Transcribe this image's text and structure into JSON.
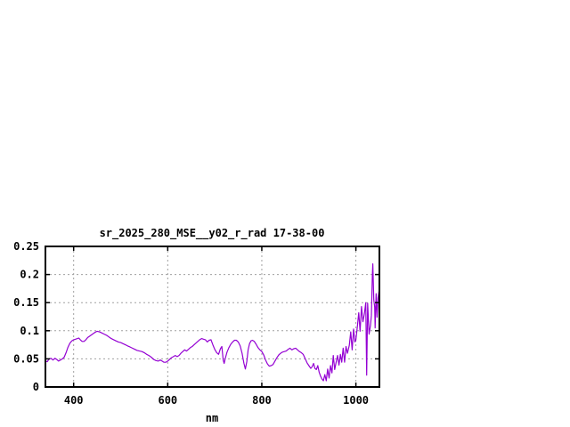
{
  "window": {
    "background_color": "#ffffff",
    "text_color": "#000000"
  },
  "chart_data": {
    "type": "line",
    "title": "sr_2025_280_MSE__y02_r_rad 17-38-00",
    "xlabel": "nm",
    "ylabel": "",
    "xlim": [
      340,
      1050
    ],
    "ylim": [
      0,
      0.25
    ],
    "xticks": [
      400,
      600,
      800,
      1000
    ],
    "xtick_labels": [
      "400",
      "600",
      "800",
      "1000"
    ],
    "yticks": [
      0,
      0.05,
      0.1,
      0.15,
      0.2,
      0.25
    ],
    "ytick_labels": [
      "0",
      "0.05",
      "0.1",
      "0.15",
      "0.2",
      "0.25"
    ],
    "grid": true,
    "grid_style": "dashed",
    "grid_color": "#a0a0a0",
    "border_color": "#000000",
    "legend_position": "none",
    "series": [
      {
        "name": "sr_2025_280_MSE__y02_r_rad",
        "color": "#9400d3",
        "points": [
          [
            340,
            0.046
          ],
          [
            344,
            0.045
          ],
          [
            348,
            0.05
          ],
          [
            352,
            0.051
          ],
          [
            356,
            0.048
          ],
          [
            360,
            0.051
          ],
          [
            364,
            0.049
          ],
          [
            368,
            0.046
          ],
          [
            372,
            0.048
          ],
          [
            376,
            0.05
          ],
          [
            380,
            0.053
          ],
          [
            384,
            0.061
          ],
          [
            388,
            0.071
          ],
          [
            392,
            0.078
          ],
          [
            396,
            0.082
          ],
          [
            400,
            0.084
          ],
          [
            404,
            0.085
          ],
          [
            408,
            0.086
          ],
          [
            411,
            0.087
          ],
          [
            414,
            0.084
          ],
          [
            418,
            0.081
          ],
          [
            422,
            0.081
          ],
          [
            426,
            0.084
          ],
          [
            430,
            0.088
          ],
          [
            435,
            0.091
          ],
          [
            440,
            0.094
          ],
          [
            445,
            0.097
          ],
          [
            450,
            0.099
          ],
          [
            455,
            0.098
          ],
          [
            460,
            0.096
          ],
          [
            465,
            0.094
          ],
          [
            470,
            0.092
          ],
          [
            475,
            0.089
          ],
          [
            480,
            0.086
          ],
          [
            485,
            0.084
          ],
          [
            490,
            0.082
          ],
          [
            495,
            0.08
          ],
          [
            500,
            0.079
          ],
          [
            505,
            0.077
          ],
          [
            510,
            0.075
          ],
          [
            515,
            0.073
          ],
          [
            520,
            0.071
          ],
          [
            525,
            0.069
          ],
          [
            530,
            0.067
          ],
          [
            535,
            0.065
          ],
          [
            540,
            0.064
          ],
          [
            545,
            0.063
          ],
          [
            550,
            0.061
          ],
          [
            555,
            0.058
          ],
          [
            560,
            0.056
          ],
          [
            565,
            0.053
          ],
          [
            570,
            0.049
          ],
          [
            575,
            0.047
          ],
          [
            580,
            0.046
          ],
          [
            584,
            0.048
          ],
          [
            588,
            0.046
          ],
          [
            592,
            0.044
          ],
          [
            596,
            0.044
          ],
          [
            600,
            0.046
          ],
          [
            604,
            0.049
          ],
          [
            608,
            0.052
          ],
          [
            612,
            0.054
          ],
          [
            616,
            0.056
          ],
          [
            620,
            0.054
          ],
          [
            624,
            0.056
          ],
          [
            628,
            0.06
          ],
          [
            632,
            0.063
          ],
          [
            636,
            0.066
          ],
          [
            640,
            0.064
          ],
          [
            644,
            0.067
          ],
          [
            648,
            0.07
          ],
          [
            652,
            0.072
          ],
          [
            656,
            0.075
          ],
          [
            660,
            0.078
          ],
          [
            664,
            0.081
          ],
          [
            668,
            0.084
          ],
          [
            672,
            0.086
          ],
          [
            676,
            0.085
          ],
          [
            680,
            0.084
          ],
          [
            684,
            0.08
          ],
          [
            688,
            0.083
          ],
          [
            692,
            0.084
          ],
          [
            696,
            0.075
          ],
          [
            700,
            0.067
          ],
          [
            704,
            0.061
          ],
          [
            708,
            0.058
          ],
          [
            712,
            0.068
          ],
          [
            715,
            0.072
          ],
          [
            718,
            0.048
          ],
          [
            720,
            0.042
          ],
          [
            722,
            0.05
          ],
          [
            726,
            0.062
          ],
          [
            730,
            0.07
          ],
          [
            734,
            0.076
          ],
          [
            738,
            0.08
          ],
          [
            742,
            0.083
          ],
          [
            746,
            0.083
          ],
          [
            750,
            0.08
          ],
          [
            754,
            0.073
          ],
          [
            758,
            0.06
          ],
          [
            762,
            0.042
          ],
          [
            765,
            0.032
          ],
          [
            768,
            0.045
          ],
          [
            771,
            0.066
          ],
          [
            774,
            0.077
          ],
          [
            777,
            0.082
          ],
          [
            780,
            0.083
          ],
          [
            784,
            0.081
          ],
          [
            788,
            0.076
          ],
          [
            792,
            0.07
          ],
          [
            796,
            0.066
          ],
          [
            800,
            0.063
          ],
          [
            804,
            0.057
          ],
          [
            808,
            0.048
          ],
          [
            812,
            0.041
          ],
          [
            816,
            0.037
          ],
          [
            820,
            0.038
          ],
          [
            824,
            0.04
          ],
          [
            828,
            0.046
          ],
          [
            832,
            0.052
          ],
          [
            836,
            0.057
          ],
          [
            840,
            0.06
          ],
          [
            844,
            0.062
          ],
          [
            848,
            0.063
          ],
          [
            852,
            0.064
          ],
          [
            856,
            0.067
          ],
          [
            860,
            0.069
          ],
          [
            864,
            0.066
          ],
          [
            868,
            0.068
          ],
          [
            872,
            0.069
          ],
          [
            876,
            0.066
          ],
          [
            880,
            0.063
          ],
          [
            884,
            0.061
          ],
          [
            888,
            0.058
          ],
          [
            892,
            0.051
          ],
          [
            896,
            0.043
          ],
          [
            900,
            0.038
          ],
          [
            904,
            0.033
          ],
          [
            907,
            0.036
          ],
          [
            910,
            0.042
          ],
          [
            913,
            0.033
          ],
          [
            916,
            0.031
          ],
          [
            919,
            0.038
          ],
          [
            922,
            0.026
          ],
          [
            925,
            0.019
          ],
          [
            928,
            0.014
          ],
          [
            931,
            0.011
          ],
          [
            934,
            0.022
          ],
          [
            937,
            0.011
          ],
          [
            940,
            0.032
          ],
          [
            943,
            0.016
          ],
          [
            946,
            0.038
          ],
          [
            949,
            0.025
          ],
          [
            952,
            0.056
          ],
          [
            955,
            0.031
          ],
          [
            958,
            0.044
          ],
          [
            961,
            0.056
          ],
          [
            964,
            0.039
          ],
          [
            967,
            0.058
          ],
          [
            970,
            0.044
          ],
          [
            973,
            0.069
          ],
          [
            976,
            0.044
          ],
          [
            979,
            0.072
          ],
          [
            982,
            0.06
          ],
          [
            986,
            0.074
          ],
          [
            989,
            0.098
          ],
          [
            992,
            0.066
          ],
          [
            995,
            0.103
          ],
          [
            998,
            0.08
          ],
          [
            1000,
            0.084
          ],
          [
            1003,
            0.107
          ],
          [
            1006,
            0.132
          ],
          [
            1009,
            0.099
          ],
          [
            1012,
            0.143
          ],
          [
            1015,
            0.116
          ],
          [
            1018,
            0.13
          ],
          [
            1021,
            0.15
          ],
          [
            1023,
            0.021
          ],
          [
            1025,
            0.149
          ],
          [
            1028,
            0.094
          ],
          [
            1031,
            0.11
          ],
          [
            1033,
            0.127
          ],
          [
            1035,
            0.2
          ],
          [
            1036,
            0.219
          ],
          [
            1038,
            0.155
          ],
          [
            1040,
            0.142
          ],
          [
            1041,
            0.105
          ],
          [
            1043,
            0.166
          ],
          [
            1045,
            0.124
          ],
          [
            1047,
            0.158
          ],
          [
            1049,
            0.17
          ],
          [
            1050,
            0.155
          ]
        ]
      }
    ]
  }
}
